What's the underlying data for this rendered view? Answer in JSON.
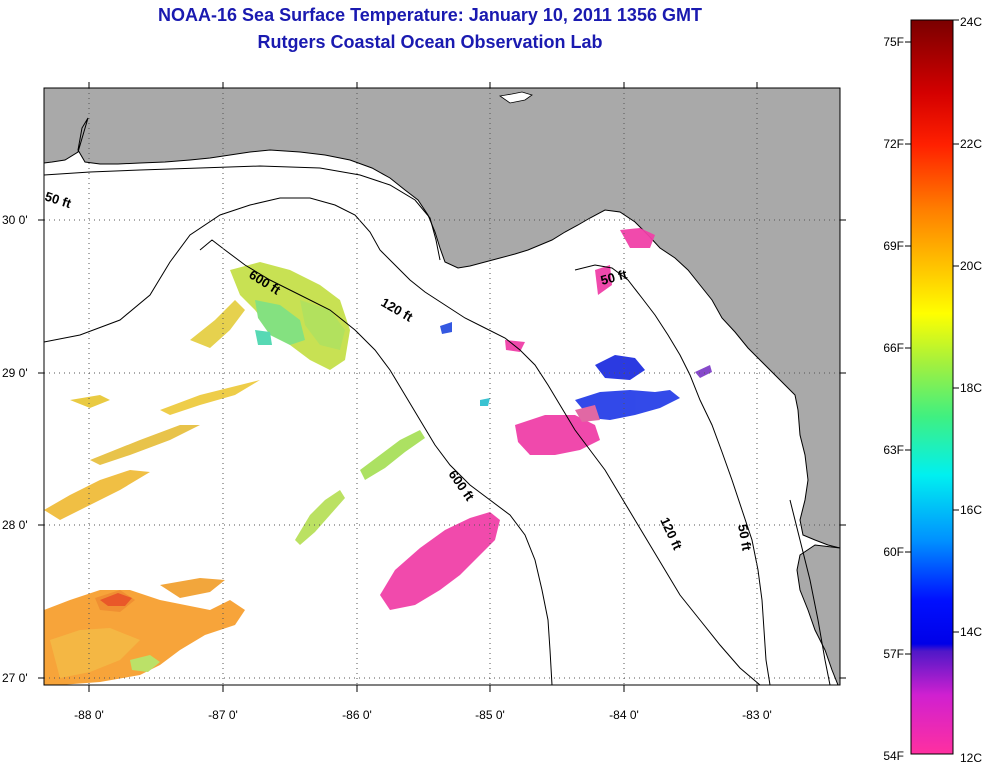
{
  "title": {
    "line1": "NOAA-16 Sea Surface Temperature:  January 10, 2011 1356 GMT",
    "line2": "Rutgers Coastal Ocean Observation Lab"
  },
  "colors": {
    "land": "#a9a9a9",
    "ocean": "#ffffff",
    "title": "#1a1ab0"
  },
  "map": {
    "lon_ticks": [
      "-88 0'",
      "-87 0'",
      "-86 0'",
      "-85 0'",
      "-84 0'",
      "-83 0'"
    ],
    "lat_ticks": [
      "30 0'",
      "29 0'",
      "28 0'",
      "27 0'"
    ],
    "contour_labels": [
      "50 ft",
      "600 ft",
      "120 ft",
      "50 ft",
      "600 ft",
      "120 ft",
      "50 ft"
    ]
  },
  "colorbar": {
    "fahrenheit": [
      "75F",
      "72F",
      "69F",
      "66F",
      "63F",
      "60F",
      "57F",
      "54F"
    ],
    "celsius": [
      "24C",
      "22C",
      "20C",
      "18C",
      "16C",
      "14C",
      "12C"
    ]
  }
}
